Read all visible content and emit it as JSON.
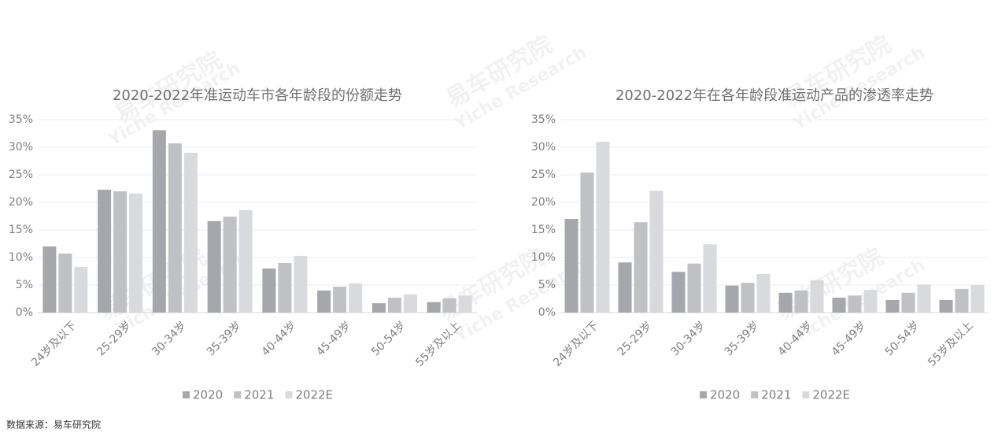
{
  "chart_data": [
    {
      "type": "bar",
      "title": "2020-2022年准运动车市各年龄段的份额走势",
      "categories": [
        "24岁及以下",
        "25-29岁",
        "30-34岁",
        "35-39岁",
        "40-44岁",
        "45-49岁",
        "50-54岁",
        "55岁及以上"
      ],
      "series": [
        {
          "name": "2020",
          "color": "#a5a7ac",
          "values": [
            12.0,
            22.3,
            33.1,
            16.6,
            8.0,
            4.0,
            1.7,
            1.9
          ]
        },
        {
          "name": "2021",
          "color": "#c0c1c5",
          "values": [
            10.7,
            22.0,
            30.7,
            17.4,
            9.0,
            4.7,
            2.7,
            2.6
          ]
        },
        {
          "name": "2022E",
          "color": "#d9dadd",
          "values": [
            8.3,
            21.6,
            29.0,
            18.6,
            10.3,
            5.3,
            3.3,
            3.1
          ]
        }
      ],
      "ylim": [
        0,
        35
      ],
      "yticks": [
        {
          "value": 0,
          "label": "0%"
        },
        {
          "value": 5,
          "label": "5%"
        },
        {
          "value": 10,
          "label": "10%"
        },
        {
          "value": 15,
          "label": "15%"
        },
        {
          "value": 20,
          "label": "20%"
        },
        {
          "value": 25,
          "label": "25%"
        },
        {
          "value": 30,
          "label": "30%"
        },
        {
          "value": 35,
          "label": "35%"
        }
      ],
      "grid": true,
      "legend": "bottom"
    },
    {
      "type": "bar",
      "title": "2020-2022年在各年龄段准运动产品的渗透率走势",
      "categories": [
        "24岁及以下",
        "25-29岁",
        "30-34岁",
        "35-39岁",
        "40-44岁",
        "45-49岁",
        "50-54岁",
        "55岁及以上"
      ],
      "series": [
        {
          "name": "2020",
          "color": "#a5a7ac",
          "values": [
            17.0,
            9.1,
            7.4,
            4.9,
            3.6,
            2.7,
            2.3,
            2.3
          ]
        },
        {
          "name": "2021",
          "color": "#c0c1c5",
          "values": [
            25.4,
            16.4,
            8.9,
            5.4,
            4.0,
            3.1,
            3.6,
            4.3
          ]
        },
        {
          "name": "2022E",
          "color": "#d9dadd",
          "values": [
            31.0,
            22.1,
            12.4,
            7.0,
            5.9,
            4.1,
            5.1,
            5.0
          ]
        }
      ],
      "ylim": [
        0,
        35
      ],
      "yticks": [
        {
          "value": 0,
          "label": "0%"
        },
        {
          "value": 5,
          "label": "5%"
        },
        {
          "value": 10,
          "label": "10%"
        },
        {
          "value": 15,
          "label": "15%"
        },
        {
          "value": 20,
          "label": "20%"
        },
        {
          "value": 25,
          "label": "25%"
        },
        {
          "value": 30,
          "label": "30%"
        },
        {
          "value": 35,
          "label": "35%"
        }
      ],
      "grid": true,
      "legend": "bottom"
    }
  ],
  "watermark": {
    "cn": "易车研究院",
    "en": "Yiche Research"
  },
  "source": "数据来源：易车研究院"
}
